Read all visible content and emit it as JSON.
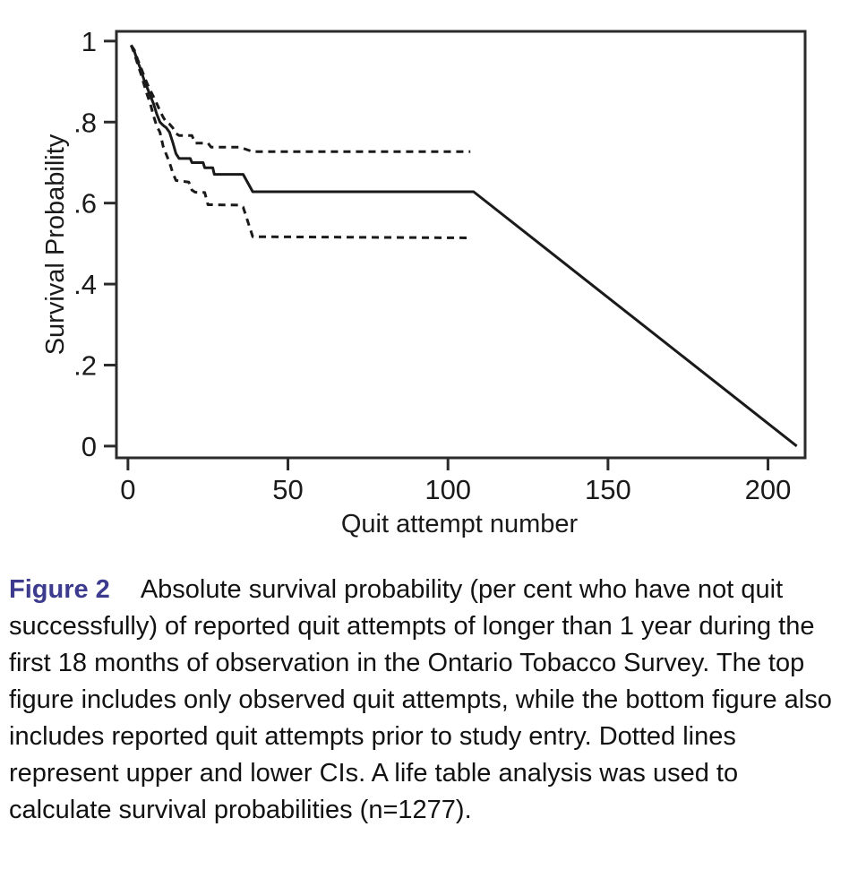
{
  "colors": {
    "line": "#1a1a1a",
    "frame": "#2b2b2b",
    "tick_text": "#1a1a1a",
    "caption_label": "#3c3b8e",
    "caption_text": "#121212",
    "background": "#ffffff"
  },
  "caption": {
    "label": "Figure 2",
    "text": "Absolute survival probability (per cent who have not quit successfully) of reported quit attempts of longer than 1 year during the first 18 months of observation in the Ontario Tobacco Survey. The top figure includes only observed quit attempts, while the bottom figure also includes reported quit attempts prior to study entry. Dotted lines represent upper and lower CIs. A life table analysis was used to calculate survival probabilities (n=1277)."
  },
  "chart_data": {
    "type": "line",
    "title": "",
    "xlabel": "Quit attempt number",
    "ylabel": "Survival Probability",
    "xlim": [
      -3.6,
      211.6
    ],
    "ylim": [
      -0.029,
      1.024
    ],
    "x_ticks": [
      {
        "value": 0,
        "label": "0"
      },
      {
        "value": 50,
        "label": "50"
      },
      {
        "value": 100,
        "label": "100"
      },
      {
        "value": 150,
        "label": "150"
      },
      {
        "value": 200,
        "label": "200"
      }
    ],
    "y_ticks": [
      {
        "value": 1.0,
        "label": "1"
      },
      {
        "value": 0.8,
        "label": ".8"
      },
      {
        "value": 0.6,
        "label": ".6"
      },
      {
        "value": 0.4,
        "label": ".4"
      },
      {
        "value": 0.2,
        "label": ".2"
      },
      {
        "value": 0.0,
        "label": "0"
      }
    ],
    "grid": false,
    "legend": "none",
    "series": [
      {
        "name": "survival",
        "style": "solid",
        "points": [
          [
            1,
            0.99
          ],
          [
            2,
            0.975
          ],
          [
            3,
            0.95
          ],
          [
            4,
            0.93
          ],
          [
            5,
            0.905
          ],
          [
            6,
            0.885
          ],
          [
            7,
            0.865
          ],
          [
            8,
            0.845
          ],
          [
            9,
            0.82
          ],
          [
            10,
            0.8
          ],
          [
            11,
            0.792
          ],
          [
            12,
            0.786
          ],
          [
            13,
            0.775
          ],
          [
            14,
            0.75
          ],
          [
            15,
            0.722
          ],
          [
            16,
            0.71
          ],
          [
            19.5,
            0.71
          ],
          [
            20,
            0.7
          ],
          [
            23.5,
            0.7
          ],
          [
            24,
            0.687
          ],
          [
            26.5,
            0.687
          ],
          [
            27,
            0.671
          ],
          [
            36,
            0.671
          ],
          [
            39,
            0.628
          ],
          [
            108,
            0.628
          ],
          [
            209,
            0.0
          ]
        ]
      },
      {
        "name": "upper_ci",
        "style": "dashed",
        "points": [
          [
            1,
            0.99
          ],
          [
            2,
            0.978
          ],
          [
            3,
            0.955
          ],
          [
            4,
            0.935
          ],
          [
            5,
            0.915
          ],
          [
            6,
            0.895
          ],
          [
            7,
            0.878
          ],
          [
            8,
            0.862
          ],
          [
            9,
            0.846
          ],
          [
            10,
            0.828
          ],
          [
            11,
            0.812
          ],
          [
            12,
            0.8
          ],
          [
            13,
            0.795
          ],
          [
            14,
            0.786
          ],
          [
            15,
            0.772
          ],
          [
            16,
            0.767
          ],
          [
            20,
            0.767
          ],
          [
            21,
            0.748
          ],
          [
            25,
            0.748
          ],
          [
            26,
            0.738
          ],
          [
            35,
            0.738
          ],
          [
            39,
            0.727
          ],
          [
            107,
            0.727
          ]
        ]
      },
      {
        "name": "lower_ci",
        "style": "dashed",
        "points": [
          [
            1,
            0.99
          ],
          [
            2,
            0.97
          ],
          [
            3,
            0.944
          ],
          [
            4,
            0.92
          ],
          [
            5,
            0.894
          ],
          [
            6,
            0.868
          ],
          [
            7,
            0.845
          ],
          [
            8,
            0.815
          ],
          [
            9,
            0.79
          ],
          [
            10,
            0.775
          ],
          [
            11,
            0.74
          ],
          [
            12,
            0.72
          ],
          [
            13,
            0.7
          ],
          [
            14,
            0.675
          ],
          [
            15,
            0.656
          ],
          [
            19,
            0.652
          ],
          [
            20,
            0.632
          ],
          [
            21,
            0.627
          ],
          [
            24,
            0.626
          ],
          [
            25,
            0.596
          ],
          [
            35,
            0.595
          ],
          [
            36,
            0.59
          ],
          [
            39,
            0.517
          ],
          [
            107,
            0.514
          ]
        ]
      }
    ]
  }
}
